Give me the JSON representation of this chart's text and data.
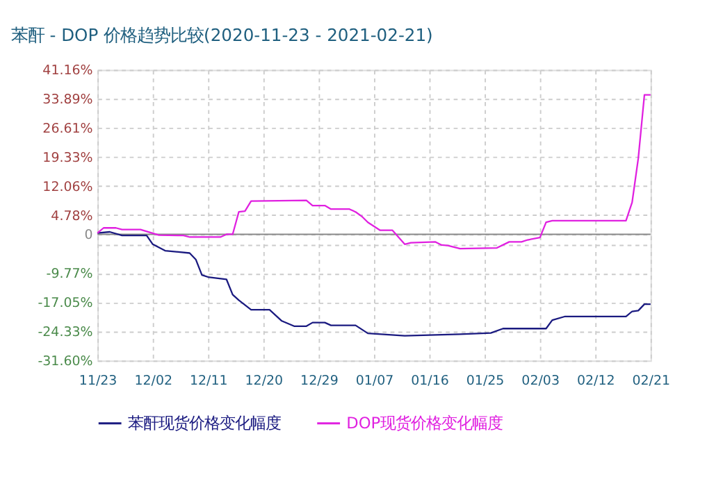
{
  "chart_data": {
    "type": "line",
    "title": "苯酐 - DOP 价格趋势比较(2020-11-23 - 2021-02-21)",
    "xlim": [
      "2020-11-23",
      "2021-02-21"
    ],
    "xticks": [
      {
        "value": "2020-11-23",
        "label": "11/23"
      },
      {
        "value": "2020-12-02",
        "label": "12/02"
      },
      {
        "value": "2020-12-11",
        "label": "12/11"
      },
      {
        "value": "2020-12-20",
        "label": "12/20"
      },
      {
        "value": "2020-12-29",
        "label": "12/29"
      },
      {
        "value": "2021-01-07",
        "label": "01/07"
      },
      {
        "value": "2021-01-16",
        "label": "01/16"
      },
      {
        "value": "2021-01-25",
        "label": "01/25"
      },
      {
        "value": "2021-02-03",
        "label": "02/03"
      },
      {
        "value": "2021-02-12",
        "label": "02/12"
      },
      {
        "value": "2021-02-21",
        "label": "02/21"
      }
    ],
    "ylim": [
      -31.6,
      41.16
    ],
    "yticks": [
      {
        "value": 41.16,
        "label": "41.16%"
      },
      {
        "value": 33.89,
        "label": "33.89%"
      },
      {
        "value": 26.61,
        "label": "26.61%"
      },
      {
        "value": 19.33,
        "label": "19.33%"
      },
      {
        "value": 12.06,
        "label": "12.06%"
      },
      {
        "value": 4.78,
        "label": "4.78%"
      },
      0,
      {
        "value": -2.5,
        "label": null
      },
      {
        "value": -9.77,
        "label": "-9.77%"
      },
      {
        "value": -17.05,
        "label": "-17.05%"
      },
      {
        "value": -24.33,
        "label": "-24.33%"
      },
      {
        "value": -31.6,
        "label": "-31.60%"
      }
    ],
    "ref_lines": [
      {
        "axis": "y",
        "value": 0,
        "color": "#888888"
      }
    ],
    "grid": true,
    "legend": "bottom",
    "marker": "none",
    "line_style": "solid",
    "series": [
      {
        "name": "苯酐现货价格变化幅度",
        "color": "#1a1a80",
        "x": [
          "2020-11-23",
          "2020-11-25",
          "2020-11-27",
          "2020-12-01",
          "2020-12-02",
          "2020-12-04",
          "2020-12-08",
          "2020-12-09",
          "2020-12-10",
          "2020-12-11",
          "2020-12-14",
          "2020-12-15",
          "2020-12-16",
          "2020-12-18",
          "2020-12-21",
          "2020-12-23",
          "2020-12-25",
          "2020-12-27",
          "2020-12-28",
          "2020-12-30",
          "2020-12-31",
          "2021-01-04",
          "2021-01-06",
          "2021-01-12",
          "2021-01-21",
          "2021-01-26",
          "2021-01-28",
          "2021-02-04",
          "2021-02-05",
          "2021-02-07",
          "2021-02-17",
          "2021-02-18",
          "2021-02-19",
          "2021-02-20",
          "2021-02-21"
        ],
        "values": [
          0.3,
          0.6,
          -0.3,
          -0.3,
          -2.5,
          -4.1,
          -4.7,
          -6.3,
          -10.2,
          -10.7,
          -11.3,
          -15.1,
          -16.5,
          -18.9,
          -18.9,
          -21.7,
          -23.0,
          -23.0,
          -22.1,
          -22.1,
          -22.8,
          -22.8,
          -24.8,
          -25.4,
          -25.0,
          -24.7,
          -23.6,
          -23.6,
          -21.5,
          -20.6,
          -20.6,
          -19.3,
          -19.1,
          -17.5,
          -17.5
        ]
      },
      {
        "name": "DOP现货价格变化幅度",
        "color": "#e020e0",
        "x": [
          "2020-11-23",
          "2020-11-24",
          "2020-11-26",
          "2020-11-27",
          "2020-11-30",
          "2020-12-03",
          "2020-12-07",
          "2020-12-08",
          "2020-12-13",
          "2020-12-14",
          "2020-12-15",
          "2020-12-16",
          "2020-12-17",
          "2020-12-18",
          "2020-12-27",
          "2020-12-28",
          "2020-12-30",
          "2020-12-31",
          "2021-01-03",
          "2021-01-04",
          "2021-01-05",
          "2021-01-06",
          "2021-01-08",
          "2021-01-10",
          "2021-01-12",
          "2021-01-13",
          "2021-01-17",
          "2021-01-18",
          "2021-01-19",
          "2021-01-21",
          "2021-01-27",
          "2021-01-29",
          "2021-01-31",
          "2021-02-01",
          "2021-02-03",
          "2021-02-04",
          "2021-02-05",
          "2021-02-17",
          "2021-02-18",
          "2021-02-19",
          "2021-02-20",
          "2021-02-21"
        ],
        "values": [
          0.3,
          1.6,
          1.6,
          1.2,
          1.2,
          -0.2,
          -0.3,
          -0.7,
          -0.7,
          0.0,
          0.0,
          5.6,
          5.8,
          8.3,
          8.5,
          7.2,
          7.2,
          6.3,
          6.3,
          5.6,
          4.5,
          3.0,
          1.0,
          1.0,
          -2.5,
          -2.1,
          -1.9,
          -2.7,
          -2.8,
          -3.6,
          -3.4,
          -1.9,
          -1.9,
          -1.4,
          -0.8,
          3.0,
          3.4,
          3.4,
          8.0,
          19.0,
          34.9,
          34.9
        ]
      }
    ]
  }
}
